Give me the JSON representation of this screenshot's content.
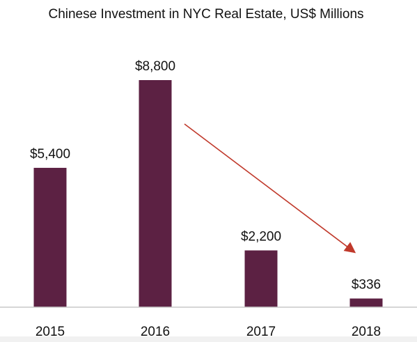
{
  "chart_data": {
    "type": "bar",
    "title": "Chinese Investment in NYC Real Estate, US$ Millions",
    "xlabel": "",
    "ylabel": "",
    "categories": [
      "2015",
      "2016",
      "2017",
      "2018"
    ],
    "values": [
      5400,
      8800,
      2200,
      336
    ],
    "data_labels": [
      "$5,400",
      "$8,800",
      "$2,200",
      "$336"
    ],
    "ylim": [
      0,
      8800
    ],
    "grid": false,
    "legend": "none",
    "annotations": [
      {
        "type": "arrow",
        "from_category": "2016",
        "to_category": "2018",
        "meaning": "decline"
      }
    ]
  },
  "colors": {
    "bar": "#5c2143",
    "arrow": "#c0392b",
    "text": "#111111",
    "axis": "#c8c8c8"
  }
}
